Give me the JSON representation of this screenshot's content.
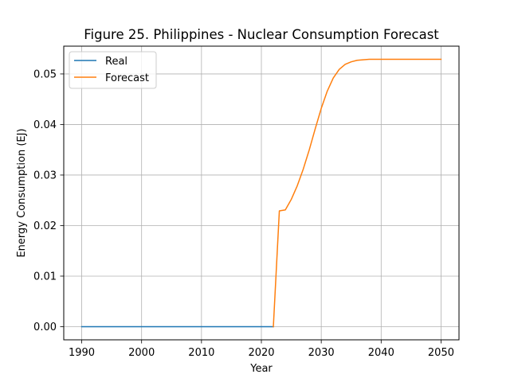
{
  "chart_data": {
    "type": "line",
    "title": "Figure 25. Philippines - Nuclear Consumption Forecast",
    "xlabel": "Year",
    "ylabel": "Energy Consumption (EJ)",
    "xlim": [
      1987,
      2053
    ],
    "ylim": [
      -0.0026,
      0.0555
    ],
    "x_ticks": [
      1990,
      2000,
      2010,
      2020,
      2030,
      2040,
      2050
    ],
    "y_ticks": [
      0.0,
      0.01,
      0.02,
      0.03,
      0.04,
      0.05
    ],
    "y_tick_labels": [
      "0.00",
      "0.01",
      "0.02",
      "0.03",
      "0.04",
      "0.05"
    ],
    "x_tick_labels": [
      "1990",
      "2000",
      "2010",
      "2020",
      "2030",
      "2040",
      "2050"
    ],
    "grid": true,
    "legend_position": "top-left",
    "series": [
      {
        "name": "Real",
        "color": "#1f77b4",
        "x": [
          1990,
          1991,
          1992,
          1993,
          1994,
          1995,
          1996,
          1997,
          1998,
          1999,
          2000,
          2001,
          2002,
          2003,
          2004,
          2005,
          2006,
          2007,
          2008,
          2009,
          2010,
          2011,
          2012,
          2013,
          2014,
          2015,
          2016,
          2017,
          2018,
          2019,
          2020,
          2021,
          2022
        ],
        "y": [
          0,
          0,
          0,
          0,
          0,
          0,
          0,
          0,
          0,
          0,
          0,
          0,
          0,
          0,
          0,
          0,
          0,
          0,
          0,
          0,
          0,
          0,
          0,
          0,
          0,
          0,
          0,
          0,
          0,
          0,
          0,
          0,
          0
        ]
      },
      {
        "name": "Forecast",
        "color": "#ff7f0e",
        "x": [
          2022,
          2023,
          2024,
          2025,
          2026,
          2027,
          2028,
          2029,
          2030,
          2031,
          2032,
          2033,
          2034,
          2035,
          2036,
          2037,
          2038,
          2039,
          2040,
          2041,
          2042,
          2043,
          2044,
          2045,
          2046,
          2047,
          2048,
          2049,
          2050
        ],
        "y": [
          0,
          0.0229,
          0.0231,
          0.0252,
          0.0279,
          0.0312,
          0.035,
          0.0392,
          0.0432,
          0.0466,
          0.0492,
          0.0509,
          0.0519,
          0.0524,
          0.0527,
          0.0528,
          0.0529,
          0.0529,
          0.0529,
          0.0529,
          0.0529,
          0.0529,
          0.0529,
          0.0529,
          0.0529,
          0.0529,
          0.0529,
          0.0529,
          0.0529
        ]
      }
    ]
  }
}
